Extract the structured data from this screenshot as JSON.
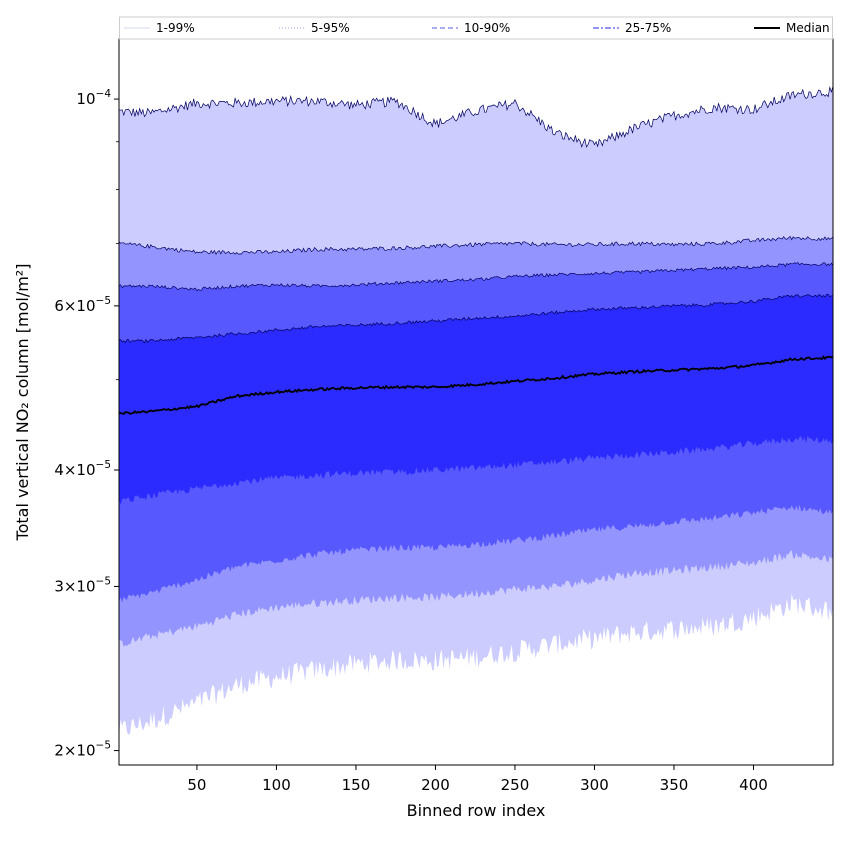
{
  "chart_data": {
    "type": "area",
    "title": "",
    "xlabel": "Binned row index",
    "ylabel": "Total vertical NO₂ column [mol/m²]",
    "xlim": [
      1,
      450
    ],
    "ylim": [
      1.93e-05,
      0.000116
    ],
    "yscale": "log",
    "x_ticks": [
      50,
      100,
      150,
      200,
      250,
      300,
      350,
      400
    ],
    "x_tick_labels": [
      "50",
      "100",
      "150",
      "200",
      "250",
      "300",
      "350",
      "400"
    ],
    "y_ticks": [
      {
        "value": 2e-05,
        "mant": "2×10",
        "exp": "−5"
      },
      {
        "value": 3e-05,
        "mant": "3×10",
        "exp": "−5"
      },
      {
        "value": 4e-05,
        "mant": "4×10",
        "exp": "−5"
      },
      {
        "value": 6e-05,
        "mant": "6×10",
        "exp": "−5"
      },
      {
        "value": 0.0001,
        "mant": "10",
        "exp": "−4"
      }
    ],
    "y_minor_ticks": [
      5e-05,
      7e-05,
      8e-05,
      9e-05
    ],
    "x_anchor": [
      1,
      20,
      50,
      75,
      100,
      125,
      150,
      175,
      200,
      225,
      250,
      275,
      300,
      325,
      350,
      375,
      400,
      425,
      450
    ],
    "series": [
      {
        "name": "1-99%",
        "lower": [
          2.1e-05,
          2.15e-05,
          2.25e-05,
          2.35e-05,
          2.4e-05,
          2.44e-05,
          2.48e-05,
          2.5e-05,
          2.5e-05,
          2.52e-05,
          2.56e-05,
          2.6e-05,
          2.64e-05,
          2.68e-05,
          2.7e-05,
          2.72e-05,
          2.78e-05,
          2.88e-05,
          2.82e-05
        ],
        "upper": [
          9.7e-05,
          9.65e-05,
          9.9e-05,
          9.9e-05,
          9.95e-05,
          9.95e-05,
          9.85e-05,
          9.95e-05,
          9.4e-05,
          9.7e-05,
          9.9e-05,
          9.2e-05,
          8.9e-05,
          9.3e-05,
          9.6e-05,
          9.8e-05,
          9.75e-05,
          0.000101,
          0.000102
        ]
      },
      {
        "name": "5-95%",
        "lower": [
          2.6e-05,
          2.65e-05,
          2.72e-05,
          2.8e-05,
          2.85e-05,
          2.88e-05,
          2.9e-05,
          2.92e-05,
          2.92e-05,
          2.95e-05,
          2.98e-05,
          3e-05,
          3.05e-05,
          3.1e-05,
          3.12e-05,
          3.15e-05,
          3.18e-05,
          3.25e-05,
          3.2e-05
        ],
        "upper": [
          7e-05,
          6.95e-05,
          6.85e-05,
          6.85e-05,
          6.85e-05,
          6.9e-05,
          6.9e-05,
          6.92e-05,
          6.95e-05,
          6.98e-05,
          7e-05,
          6.98e-05,
          6.98e-05,
          7e-05,
          6.98e-05,
          7e-05,
          7.05e-05,
          7.1e-05,
          7.08e-05
        ]
      },
      {
        "name": "10-90%",
        "lower": [
          2.9e-05,
          2.95e-05,
          3.05e-05,
          3.15e-05,
          3.2e-05,
          3.25e-05,
          3.28e-05,
          3.3e-05,
          3.3e-05,
          3.33e-05,
          3.36e-05,
          3.4e-05,
          3.45e-05,
          3.48e-05,
          3.52e-05,
          3.55e-05,
          3.6e-05,
          3.65e-05,
          3.6e-05
        ],
        "upper": [
          6.3e-05,
          6.3e-05,
          6.25e-05,
          6.3e-05,
          6.32e-05,
          6.3e-05,
          6.32e-05,
          6.35e-05,
          6.38e-05,
          6.4e-05,
          6.45e-05,
          6.48e-05,
          6.5e-05,
          6.52e-05,
          6.55e-05,
          6.58e-05,
          6.6e-05,
          6.65e-05,
          6.65e-05
        ]
      },
      {
        "name": "25-75%",
        "lower": [
          3.7e-05,
          3.75e-05,
          3.82e-05,
          3.88e-05,
          3.92e-05,
          3.95e-05,
          3.97e-05,
          3.98e-05,
          4e-05,
          4.02e-05,
          4.05e-05,
          4.08e-05,
          4.12e-05,
          4.15e-05,
          4.18e-05,
          4.22e-05,
          4.27e-05,
          4.32e-05,
          4.3e-05
        ],
        "upper": [
          5.5e-05,
          5.5e-05,
          5.55e-05,
          5.6e-05,
          5.65e-05,
          5.7e-05,
          5.72e-05,
          5.75e-05,
          5.78e-05,
          5.82e-05,
          5.85e-05,
          5.9e-05,
          5.95e-05,
          5.97e-05,
          6e-05,
          6.02e-05,
          6.07e-05,
          6.15e-05,
          6.15e-05
        ]
      },
      {
        "name": "Median",
        "values": [
          4.6e-05,
          4.62e-05,
          4.68e-05,
          4.8e-05,
          4.85e-05,
          4.88e-05,
          4.9e-05,
          4.91e-05,
          4.91e-05,
          4.94e-05,
          4.98e-05,
          5.02e-05,
          5.07e-05,
          5.1e-05,
          5.12e-05,
          5.14e-05,
          5.18e-05,
          5.26e-05,
          5.28e-05
        ]
      }
    ],
    "legend": {
      "placement": "top",
      "entries": [
        {
          "label": "1-99%",
          "color": "#e0e0f4",
          "style": "solid"
        },
        {
          "label": "5-95%",
          "color": "#b3b3e6",
          "style": "dotted"
        },
        {
          "label": "10-90%",
          "color": "#7a7ae8",
          "style": "dashed"
        },
        {
          "label": "25-75%",
          "color": "#5555e6",
          "style": "dashdot"
        },
        {
          "label": "Median",
          "color": "#000000",
          "style": "solid"
        }
      ]
    },
    "colors": {
      "band_1_99": "#ccccff",
      "band_5_95": "#9494ff",
      "band_10_90": "#5858ff",
      "band_25_75": "#2b2bff",
      "edge": "#000060",
      "median": "#000000"
    }
  }
}
